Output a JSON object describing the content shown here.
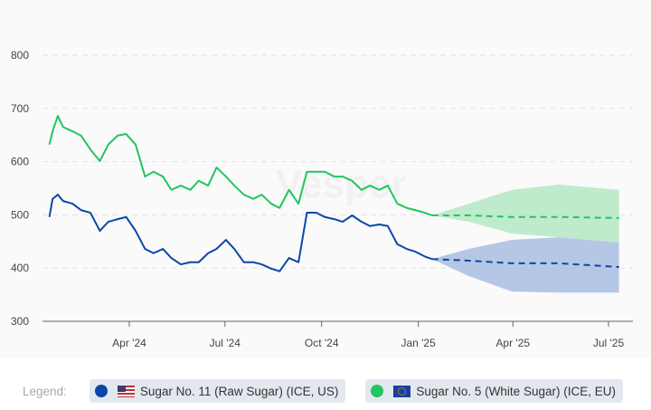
{
  "watermark": "Vesper",
  "legend": {
    "title": "Legend:",
    "items": [
      {
        "label": "Sugar No. 11 (Raw Sugar) (ICE, US)",
        "color": "#0a47a8",
        "flag": "us-flag"
      },
      {
        "label": "Sugar No. 5 (White Sugar) (ICE, EU)",
        "color": "#22c55e",
        "flag": "eu-flag"
      }
    ]
  },
  "chart_data": {
    "type": "line",
    "title": "",
    "xlabel": "",
    "ylabel": "",
    "ylim": [
      300,
      800
    ],
    "yticks": [
      300,
      400,
      500,
      600,
      700,
      800
    ],
    "xticks": [
      {
        "date": "2024-04-01",
        "label": "Apr '24"
      },
      {
        "date": "2024-07-01",
        "label": "Jul '24"
      },
      {
        "date": "2024-10-01",
        "label": "Oct '24"
      },
      {
        "date": "2025-01-01",
        "label": "Jan '25"
      },
      {
        "date": "2025-04-01",
        "label": "Apr '25"
      },
      {
        "date": "2025-07-01",
        "label": "Jul '25"
      }
    ],
    "grid": true,
    "dates": [
      "2024-01-16",
      "2024-01-19",
      "2024-01-24",
      "2024-01-29",
      "2024-02-07",
      "2024-02-15",
      "2024-02-24",
      "2024-03-04",
      "2024-03-12",
      "2024-03-21",
      "2024-03-29",
      "2024-04-07",
      "2024-04-16",
      "2024-04-24",
      "2024-05-03",
      "2024-05-11",
      "2024-05-20",
      "2024-05-29",
      "2024-06-06",
      "2024-06-15",
      "2024-06-23",
      "2024-07-02",
      "2024-07-10",
      "2024-07-19",
      "2024-07-28",
      "2024-08-05",
      "2024-08-14",
      "2024-08-22",
      "2024-08-31",
      "2024-09-09",
      "2024-09-17",
      "2024-09-26",
      "2024-10-04",
      "2024-10-13",
      "2024-10-21",
      "2024-10-30",
      "2024-11-08",
      "2024-11-16",
      "2024-11-25",
      "2024-12-03",
      "2024-12-12",
      "2024-12-21",
      "2024-12-29",
      "2025-01-07",
      "2025-01-14"
    ],
    "forecast_dates": [
      "2025-01-14",
      "2025-02-18",
      "2025-03-31",
      "2025-05-15",
      "2025-07-11"
    ],
    "series": [
      {
        "name": "Sugar No. 11 (Raw Sugar) (ICE, US)",
        "color": "#0a47a8",
        "band_color": "#a9bde0",
        "values": [
          496,
          530,
          538,
          526,
          521,
          509,
          504,
          470,
          487,
          492,
          496,
          470,
          436,
          428,
          436,
          419,
          407,
          411,
          411,
          428,
          436,
          453,
          436,
          411,
          411,
          407,
          399,
          394,
          419,
          411,
          504,
          504,
          496,
          492,
          487,
          499,
          487,
          479,
          482,
          479,
          445,
          436,
          431,
          422,
          417
        ],
        "forecast": [
          417,
          414,
          409,
          409,
          402
        ],
        "forecast_upper": [
          417,
          436,
          453,
          458,
          448
        ],
        "forecast_lower": [
          417,
          385,
          356,
          354,
          354
        ]
      },
      {
        "name": "Sugar No. 5 (White Sugar) (ICE, EU)",
        "color": "#22c55e",
        "band_color": "#b4e8c4",
        "values": [
          632,
          657,
          686,
          665,
          657,
          649,
          623,
          601,
          632,
          649,
          652,
          632,
          572,
          581,
          572,
          547,
          555,
          547,
          564,
          555,
          589,
          572,
          555,
          538,
          530,
          538,
          521,
          513,
          547,
          521,
          581,
          581,
          581,
          572,
          572,
          564,
          547,
          555,
          547,
          555,
          521,
          513,
          509,
          504,
          499
        ],
        "forecast": [
          499,
          499,
          496,
          496,
          494
        ],
        "forecast_upper": [
          499,
          521,
          547,
          557,
          547
        ],
        "forecast_lower": [
          499,
          487,
          465,
          458,
          448
        ]
      }
    ]
  }
}
